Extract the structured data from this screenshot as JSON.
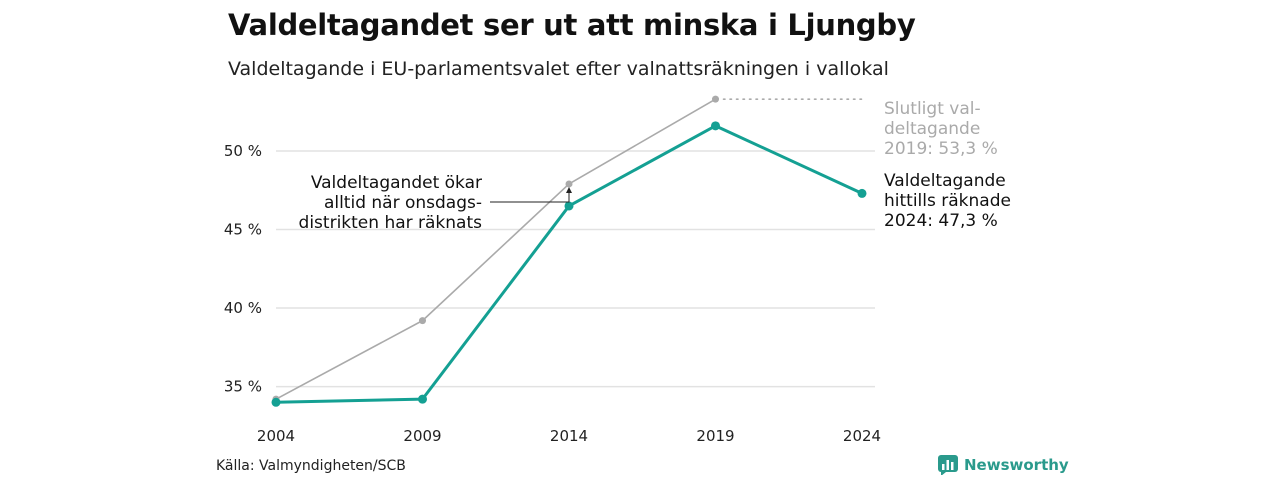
{
  "chart_data": {
    "type": "line",
    "title": "Valdeltagandet ser ut att minska i Ljungby",
    "subtitle": "Valdeltagande i EU-parlamentsvalet efter valnattsräkningen i vallokal",
    "x": [
      2004,
      2009,
      2014,
      2019,
      2024
    ],
    "x_tick_labels": [
      "2004",
      "2009",
      "2014",
      "2019",
      "2024"
    ],
    "y_ticks": [
      35,
      40,
      45,
      50
    ],
    "y_tick_labels": [
      "35 %",
      "40 %",
      "45 %",
      "50 %"
    ],
    "ylim": [
      33,
      53.5
    ],
    "grid": "horizontal",
    "series": [
      {
        "key": "final",
        "values": [
          34.2,
          39.2,
          47.9,
          53.3,
          null
        ],
        "color": "#aaaaaa"
      },
      {
        "key": "election_night",
        "values": [
          34.0,
          34.2,
          46.5,
          51.6,
          47.3
        ],
        "color": "#14a093"
      }
    ],
    "annotations": {
      "final_label": [
        "Slutligt val-",
        "deltagande",
        "2019: 53,3 %"
      ],
      "current_label": [
        "Valdeltagande",
        "hittills räknade",
        "2024: 47,3 %"
      ],
      "callout": [
        "Valdeltagandet ökar",
        "alltid när onsdags-",
        "distrikten har räknats"
      ]
    }
  },
  "footer": {
    "source": "Källa: Valmyndigheten/SCB",
    "brand": "Newsworthy",
    "brand_color": "#2a9a8c",
    "brand_icon": "bar-chart-logo-icon"
  }
}
